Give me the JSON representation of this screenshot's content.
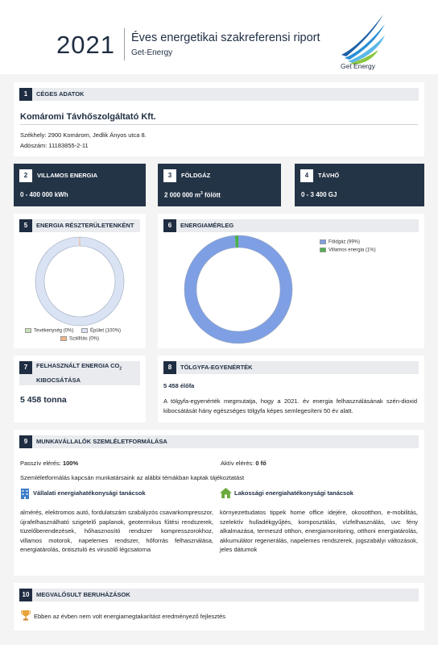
{
  "header": {
    "year": "2021",
    "title": "Éves energetikai szakreferensi riport",
    "subtitle": "Get-Energy",
    "logo_text": "Get Energy"
  },
  "s1": {
    "num": "1",
    "label": "CÉGES ADATOK",
    "company": "Komáromi Távhőszolgáltató Kft.",
    "address": "Székhely: 2900 Komárom, Jedlik Ányos utca 8.",
    "tax": "Adószám: 11183855-2-11"
  },
  "s2": {
    "num": "2",
    "label": "VILLAMOS ENERGIA",
    "value": "0 - 400 000 kWh"
  },
  "s3": {
    "num": "3",
    "label": "FÖLDGÁZ",
    "value_main": "2 000 000 m",
    "value_sup": "3",
    "value_tail": " fölött"
  },
  "s4": {
    "num": "4",
    "label": "TÁVHŐ",
    "value": "0 - 3 400 GJ"
  },
  "s5": {
    "num": "5",
    "label": "ENERGIA RÉSZTERÜLETENKÉNT",
    "legend": [
      {
        "label": "Tevékenység (0%)",
        "color": "#c6e0b4"
      },
      {
        "label": "Épület (100%)",
        "color": "#dae3f3"
      },
      {
        "label": "Szállítás (0%)",
        "color": "#f4b183"
      }
    ]
  },
  "s6": {
    "num": "6",
    "label": "ENERGIAMÉRLEG",
    "legend": [
      {
        "label": "Földgáz (99%)",
        "color": "#7e9fe3"
      },
      {
        "label": "Villamos energia (1%)",
        "color": "#4db04a"
      }
    ]
  },
  "s7": {
    "num": "7",
    "label_main": "FELHASZNÁLT ENERGIA CO",
    "label_sub": "2",
    "label_line2": "KIBOCSÁTÁSA",
    "value": "5 458 tonna"
  },
  "s8": {
    "num": "8",
    "label": "TÖLGYFA-EGYENÉRTÉK",
    "value": "5 458 élőfa",
    "text": "A tölgyfa-egyenérték megmutatja, hogy a 2021. év energia felhasználásának szén-dioxid kibocsátását hány egészséges tölgyfa képes semlegesíteni 50 év alatt."
  },
  "s9": {
    "num": "9",
    "label": "MUNKAVÁLLALÓK SZEMLÉLETFORMÁLÁSA",
    "passive_label": "Passzív elérés:",
    "passive_value": "100%",
    "active_label": "Aktív elérés:",
    "active_value": "0 fő",
    "intro": "Szemléletformálás kapcsán munkatársaink az alábbi témákban kaptak tájékoztatást",
    "corp_title": "Vállalati energiahatékonysági tanácsok",
    "home_title": "Lakossági energiahatékonysági tanácsok",
    "corp_text": "alméréș, elektromos autó, fordulatszám szabályzós csavarkompresszor, újrafelhasználható szigetelő paplanok, geotermikus fűtési rendszerek, tüzelőberendezések, hőhasznosító rendszer kompresszorokhoz, villamos motorok, napelemes rendszer, hőforrás felhasználása, energiatárolás, öntisztuló és virusölő légcsatorna",
    "home_text": "környezettudatos tippek home office idejére, okosotthon, e-mobilitás, szelektív hulladékgyűjtés, komposztálás, vízfelhasználás, uvc fény alkalmazása, termeszd otthon, energiamonitoring, otthoni energiatárolás, akkumulátor regenerálás, napelemes rendszerek, jogszabályi változások, jeles dátumok"
  },
  "s10": {
    "num": "10",
    "label": "MEGVALÓSULT BERUHÁZÁSOK",
    "text": "Ebben az évben nem volt energiamegtakarítást eredményező fejlesztés"
  },
  "chart_data": [
    {
      "type": "pie",
      "variant": "donut",
      "categories": [
        "Tevékenység",
        "Épület",
        "Szállítás"
      ],
      "values": [
        0,
        100,
        0
      ],
      "colors": [
        "#c6e0b4",
        "#dae3f3",
        "#f4b183"
      ],
      "legend_position": "bottom"
    },
    {
      "type": "pie",
      "variant": "donut",
      "categories": [
        "Földgáz",
        "Villamos energia"
      ],
      "values": [
        99,
        1
      ],
      "colors": [
        "#7e9fe3",
        "#4db04a"
      ],
      "legend_position": "top-right"
    }
  ]
}
